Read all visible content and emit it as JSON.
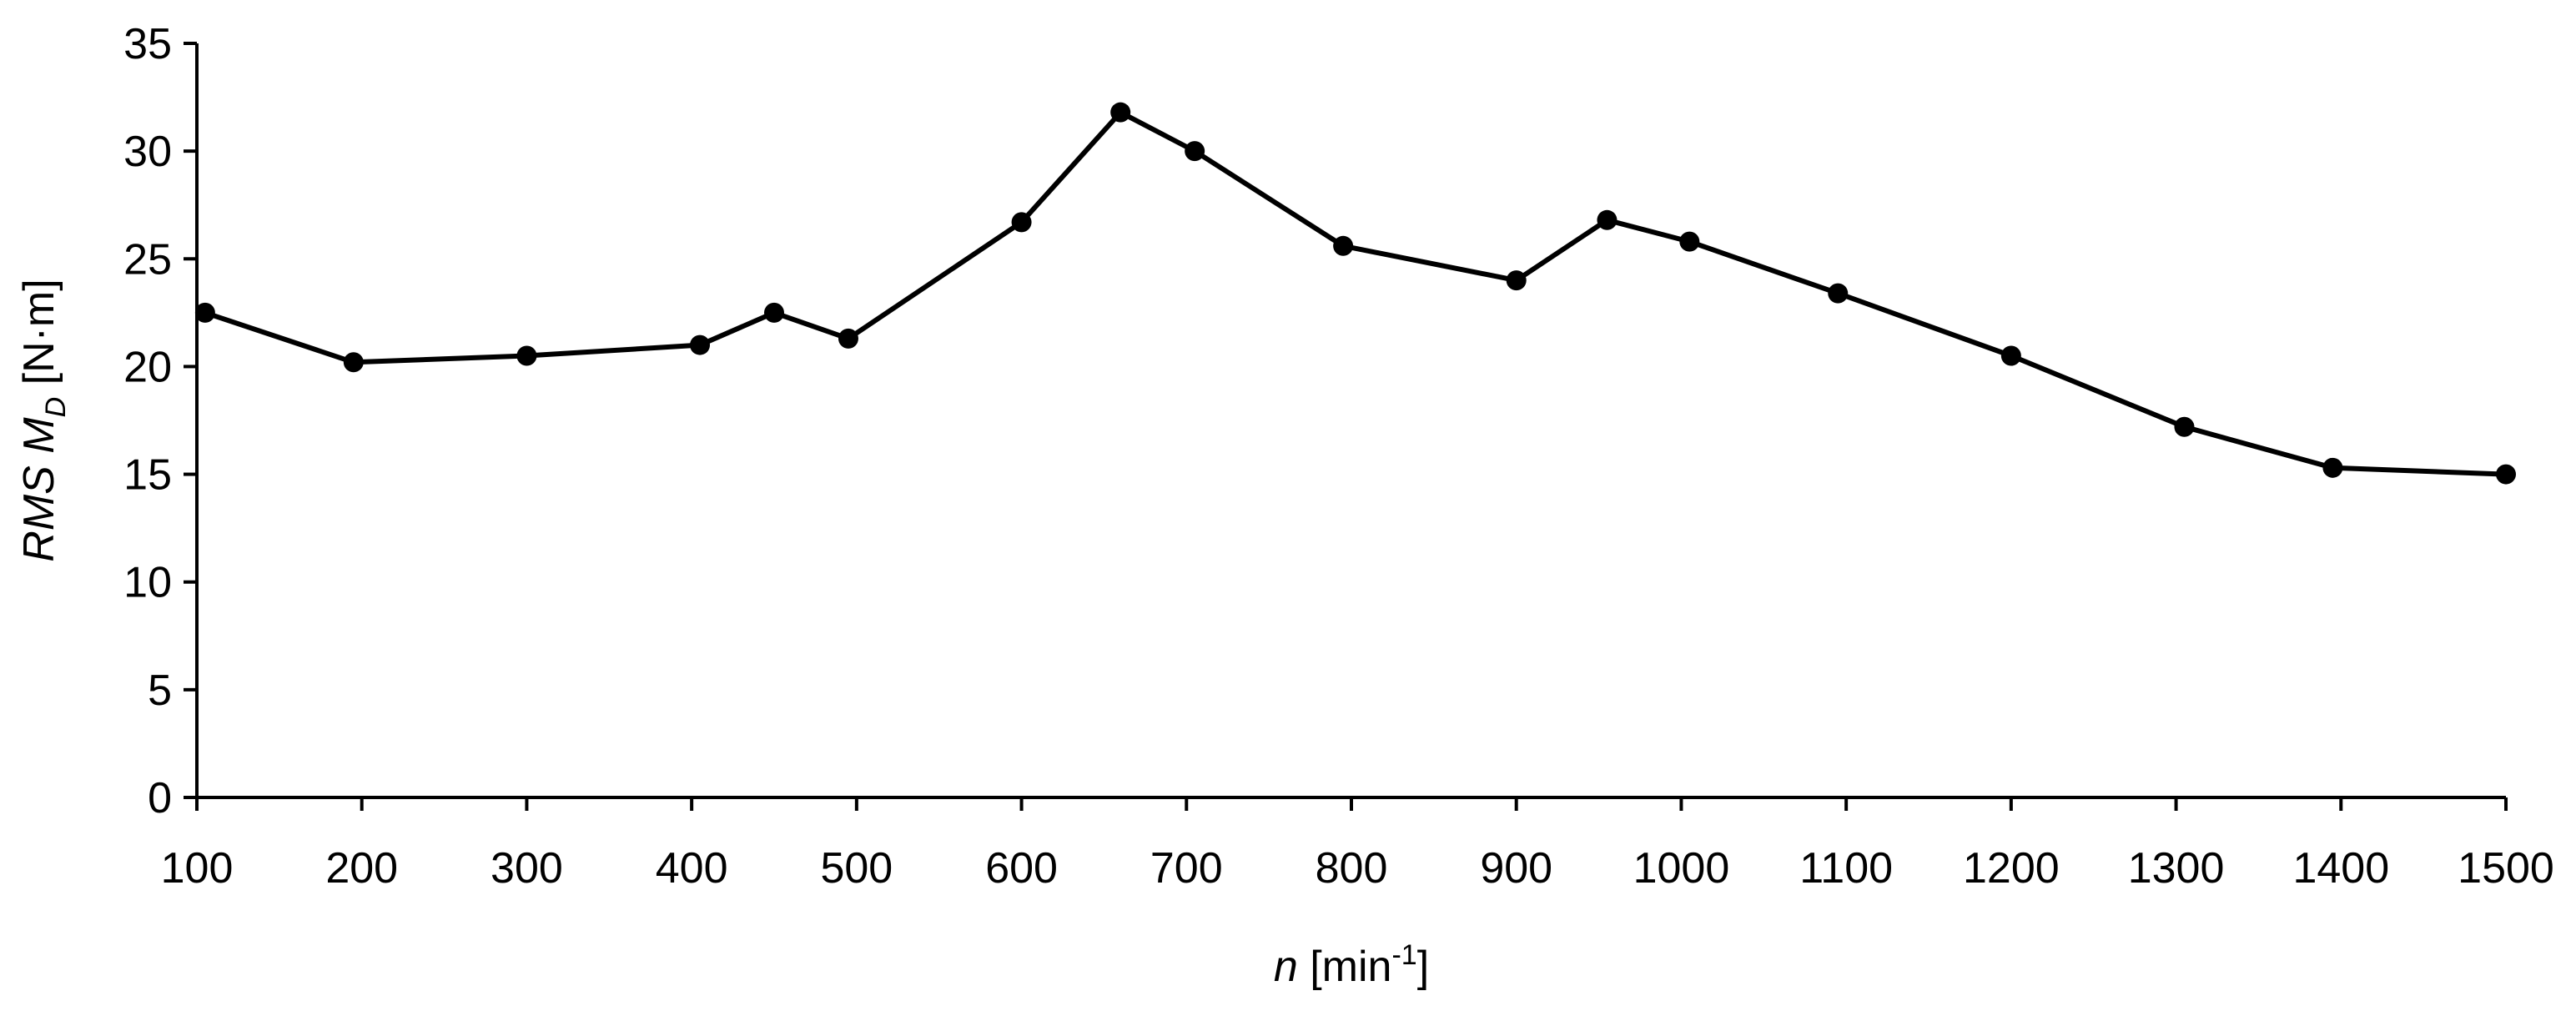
{
  "chart_data": {
    "type": "line",
    "xlabel": {
      "var": "n",
      "unit_open": " [min",
      "unit_sup": "-1",
      "unit_close": "]"
    },
    "ylabel": {
      "var": "RMS M",
      "sub": "D",
      "unit": " [N·m]"
    },
    "xlim": [
      100,
      1500
    ],
    "ylim": [
      0,
      35
    ],
    "x_ticks": [
      100,
      200,
      300,
      400,
      500,
      600,
      700,
      800,
      900,
      1000,
      1100,
      1200,
      1300,
      1400,
      1500
    ],
    "y_ticks": [
      0,
      5,
      10,
      15,
      20,
      25,
      30,
      35
    ],
    "grid": false,
    "series": [
      {
        "x": [
          105,
          195,
          300,
          405,
          450,
          495,
          600,
          660,
          705,
          795,
          900,
          955,
          1005,
          1095,
          1200,
          1305,
          1395,
          1500
        ],
        "y": [
          22.5,
          20.2,
          20.5,
          21.0,
          22.5,
          21.3,
          26.7,
          31.8,
          30.0,
          25.6,
          24.0,
          26.8,
          25.8,
          23.4,
          20.5,
          17.2,
          15.3,
          15.0
        ]
      }
    ]
  }
}
